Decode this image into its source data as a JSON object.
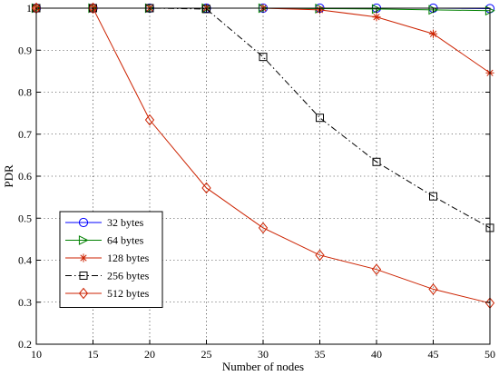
{
  "chart_data": {
    "type": "line",
    "title": "",
    "xlabel": "Number of nodes",
    "ylabel": "PDR",
    "x": [
      10,
      15,
      20,
      25,
      30,
      35,
      40,
      45,
      50
    ],
    "xlim": [
      10,
      50
    ],
    "ylim": [
      0.2,
      1.0
    ],
    "xticks": [
      "10",
      "15",
      "20",
      "25",
      "30",
      "35",
      "40",
      "45",
      "50"
    ],
    "yticks": [
      "0.2",
      "0.3",
      "0.4",
      "0.5",
      "0.6",
      "0.7",
      "0.8",
      "0.9",
      "1"
    ],
    "grid": true,
    "legend_position": "lower-left",
    "series": [
      {
        "name": "32 bytes",
        "color": "#0000ff",
        "marker": "circle",
        "dash": "solid",
        "values": [
          1.0,
          1.0,
          1.0,
          1.0,
          1.0,
          1.0,
          1.0,
          1.0,
          0.999
        ]
      },
      {
        "name": "64 bytes",
        "color": "#008000",
        "marker": "triangle-right",
        "dash": "solid",
        "values": [
          1.0,
          1.0,
          1.0,
          1.0,
          1.0,
          0.999,
          0.998,
          0.996,
          0.994
        ]
      },
      {
        "name": "128 bytes",
        "color": "#cc2200",
        "marker": "star",
        "dash": "solid",
        "values": [
          1.0,
          1.0,
          1.0,
          1.0,
          1.0,
          0.996,
          0.979,
          0.939,
          0.846
        ]
      },
      {
        "name": "256 bytes",
        "color": "#000000",
        "marker": "square",
        "dash": "dashdot",
        "values": [
          1.0,
          1.0,
          1.0,
          0.998,
          0.884,
          0.739,
          0.634,
          0.552,
          0.477
        ]
      },
      {
        "name": "512 bytes",
        "color": "#cc2200",
        "marker": "diamond",
        "dash": "solid",
        "values": [
          1.0,
          1.0,
          0.734,
          0.572,
          0.477,
          0.412,
          0.378,
          0.331,
          0.298
        ]
      }
    ]
  }
}
